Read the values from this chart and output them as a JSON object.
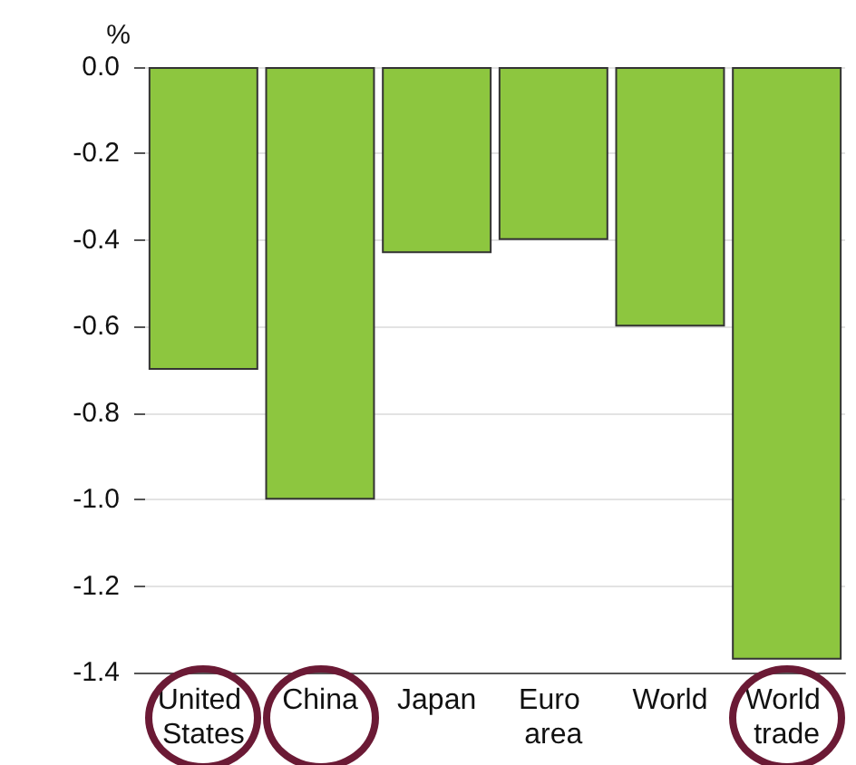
{
  "chart_data": {
    "type": "bar",
    "ylabel": "%",
    "categories": [
      "United States",
      "China",
      "Japan",
      "Euro area",
      "World",
      "World trade"
    ],
    "values": [
      -0.7,
      -1.0,
      -0.43,
      -0.4,
      -0.6,
      -1.37
    ],
    "color": "#8dc63f",
    "ylim": [
      -1.4,
      0.0
    ],
    "yticks": [
      {
        "value": 0,
        "label": "0.0"
      },
      -0.2,
      -0.4,
      -0.6,
      -0.8,
      {
        "value": -1,
        "label": "-1.0"
      },
      -1.2,
      -1.4
    ],
    "grid": "y"
  }
}
